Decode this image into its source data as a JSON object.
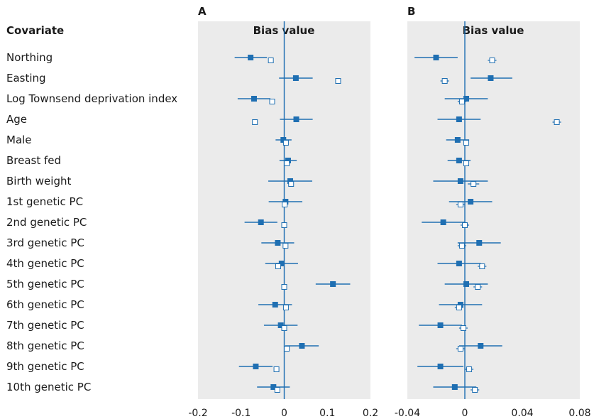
{
  "covariate_header": "Covariate",
  "chart_data": [
    {
      "type": "forest",
      "panel": "A",
      "title": "Bias value",
      "xlim": [
        -0.2,
        0.2
      ],
      "ticks": [
        "-0.2",
        "-0.1",
        "0",
        "0.1",
        "0.2"
      ],
      "tick_values": [
        -0.2,
        -0.1,
        0,
        0.1,
        0.2
      ],
      "rows": [
        {
          "label": "Northing",
          "est": -0.078,
          "lo": -0.115,
          "hi": -0.04,
          "open": -0.031,
          "open_lo": null,
          "open_hi": null
        },
        {
          "label": "Easting",
          "est": 0.027,
          "lo": -0.012,
          "hi": 0.066,
          "open": 0.125,
          "open_lo": null,
          "open_hi": null
        },
        {
          "label": "Log Townsend deprivation index",
          "est": -0.07,
          "lo": -0.108,
          "hi": -0.032,
          "open": -0.028,
          "open_lo": null,
          "open_hi": null
        },
        {
          "label": "Age",
          "est": 0.028,
          "lo": -0.01,
          "hi": 0.066,
          "open": -0.068,
          "open_lo": null,
          "open_hi": null
        },
        {
          "label": "Male",
          "est": -0.002,
          "lo": -0.02,
          "hi": 0.017,
          "open": 0.004,
          "open_lo": null,
          "open_hi": null
        },
        {
          "label": "Breast fed",
          "est": 0.009,
          "lo": -0.011,
          "hi": 0.029,
          "open": 0.006,
          "open_lo": null,
          "open_hi": null
        },
        {
          "label": "Birth weight",
          "est": 0.014,
          "lo": -0.037,
          "hi": 0.065,
          "open": 0.016,
          "open_lo": null,
          "open_hi": null
        },
        {
          "label": "1st genetic PC",
          "est": 0.003,
          "lo": -0.036,
          "hi": 0.042,
          "open": 0.001,
          "open_lo": null,
          "open_hi": null
        },
        {
          "label": "2nd genetic PC",
          "est": -0.054,
          "lo": -0.092,
          "hi": -0.016,
          "open": 0.0,
          "open_lo": null,
          "open_hi": null
        },
        {
          "label": "3rd genetic PC",
          "est": -0.015,
          "lo": -0.053,
          "hi": 0.023,
          "open": 0.003,
          "open_lo": null,
          "open_hi": null
        },
        {
          "label": "4th genetic PC",
          "est": -0.006,
          "lo": -0.044,
          "hi": 0.032,
          "open": -0.014,
          "open_lo": null,
          "open_hi": null
        },
        {
          "label": "5th genetic PC",
          "est": 0.113,
          "lo": 0.073,
          "hi": 0.153,
          "open": 0.0,
          "open_lo": null,
          "open_hi": null
        },
        {
          "label": "6th genetic PC",
          "est": -0.021,
          "lo": -0.06,
          "hi": 0.018,
          "open": 0.004,
          "open_lo": null,
          "open_hi": null
        },
        {
          "label": "7th genetic PC",
          "est": -0.008,
          "lo": -0.047,
          "hi": 0.031,
          "open": 0.0,
          "open_lo": null,
          "open_hi": null
        },
        {
          "label": "8th genetic PC",
          "est": 0.041,
          "lo": 0.002,
          "hi": 0.08,
          "open": 0.006,
          "open_lo": null,
          "open_hi": null
        },
        {
          "label": "9th genetic PC",
          "est": -0.066,
          "lo": -0.105,
          "hi": -0.027,
          "open": -0.018,
          "open_lo": null,
          "open_hi": null
        },
        {
          "label": "10th genetic PC",
          "est": -0.025,
          "lo": -0.063,
          "hi": 0.013,
          "open": -0.016,
          "open_lo": null,
          "open_hi": null
        }
      ]
    },
    {
      "type": "forest",
      "panel": "B",
      "title": "Bias value",
      "xlim": [
        -0.04,
        0.08
      ],
      "ticks": [
        "-0.04",
        "0",
        "0.04",
        "0.08"
      ],
      "tick_values": [
        -0.04,
        0,
        0.04,
        0.08
      ],
      "rows": [
        {
          "label": "Northing",
          "est": -0.02,
          "lo": -0.035,
          "hi": -0.005,
          "open": 0.019,
          "open_lo": 0.016,
          "open_hi": 0.022
        },
        {
          "label": "Easting",
          "est": 0.018,
          "lo": 0.004,
          "hi": 0.033,
          "open": -0.014,
          "open_lo": -0.017,
          "open_hi": -0.011
        },
        {
          "label": "Log Townsend deprivation index",
          "est": 0.001,
          "lo": -0.014,
          "hi": 0.016,
          "open": -0.002,
          "open_lo": -0.005,
          "open_hi": 0.001
        },
        {
          "label": "Age",
          "est": -0.004,
          "lo": -0.019,
          "hi": 0.011,
          "open": 0.064,
          "open_lo": 0.061,
          "open_hi": 0.067
        },
        {
          "label": "Male",
          "est": -0.005,
          "lo": -0.013,
          "hi": 0.003,
          "open": 0.001,
          "open_lo": 0.0,
          "open_hi": 0.002
        },
        {
          "label": "Breast fed",
          "est": -0.004,
          "lo": -0.012,
          "hi": 0.004,
          "open": 0.001,
          "open_lo": 0.0,
          "open_hi": 0.002
        },
        {
          "label": "Birth weight",
          "est": -0.003,
          "lo": -0.022,
          "hi": 0.016,
          "open": 0.006,
          "open_lo": 0.002,
          "open_hi": 0.01
        },
        {
          "label": "1st genetic PC",
          "est": 0.004,
          "lo": -0.011,
          "hi": 0.019,
          "open": -0.003,
          "open_lo": -0.006,
          "open_hi": 0.0
        },
        {
          "label": "2nd genetic PC",
          "est": -0.015,
          "lo": -0.03,
          "hi": 0.0,
          "open": 0.0,
          "open_lo": -0.003,
          "open_hi": 0.003
        },
        {
          "label": "3rd genetic PC",
          "est": 0.01,
          "lo": -0.005,
          "hi": 0.025,
          "open": -0.002,
          "open_lo": -0.005,
          "open_hi": 0.001
        },
        {
          "label": "4th genetic PC",
          "est": -0.004,
          "lo": -0.019,
          "hi": 0.011,
          "open": 0.012,
          "open_lo": 0.009,
          "open_hi": 0.015
        },
        {
          "label": "5th genetic PC",
          "est": 0.001,
          "lo": -0.014,
          "hi": 0.016,
          "open": 0.009,
          "open_lo": 0.006,
          "open_hi": 0.012
        },
        {
          "label": "6th genetic PC",
          "est": -0.003,
          "lo": -0.018,
          "hi": 0.012,
          "open": -0.004,
          "open_lo": -0.007,
          "open_hi": -0.001
        },
        {
          "label": "7th genetic PC",
          "est": -0.017,
          "lo": -0.032,
          "hi": -0.002,
          "open": -0.001,
          "open_lo": -0.004,
          "open_hi": 0.002
        },
        {
          "label": "8th genetic PC",
          "est": 0.011,
          "lo": -0.004,
          "hi": 0.026,
          "open": -0.003,
          "open_lo": -0.006,
          "open_hi": 0.0
        },
        {
          "label": "9th genetic PC",
          "est": -0.017,
          "lo": -0.033,
          "hi": -0.001,
          "open": 0.003,
          "open_lo": 0.0,
          "open_hi": 0.006
        },
        {
          "label": "10th genetic PC",
          "est": -0.007,
          "lo": -0.022,
          "hi": 0.008,
          "open": 0.007,
          "open_lo": 0.004,
          "open_hi": 0.01
        }
      ]
    }
  ]
}
